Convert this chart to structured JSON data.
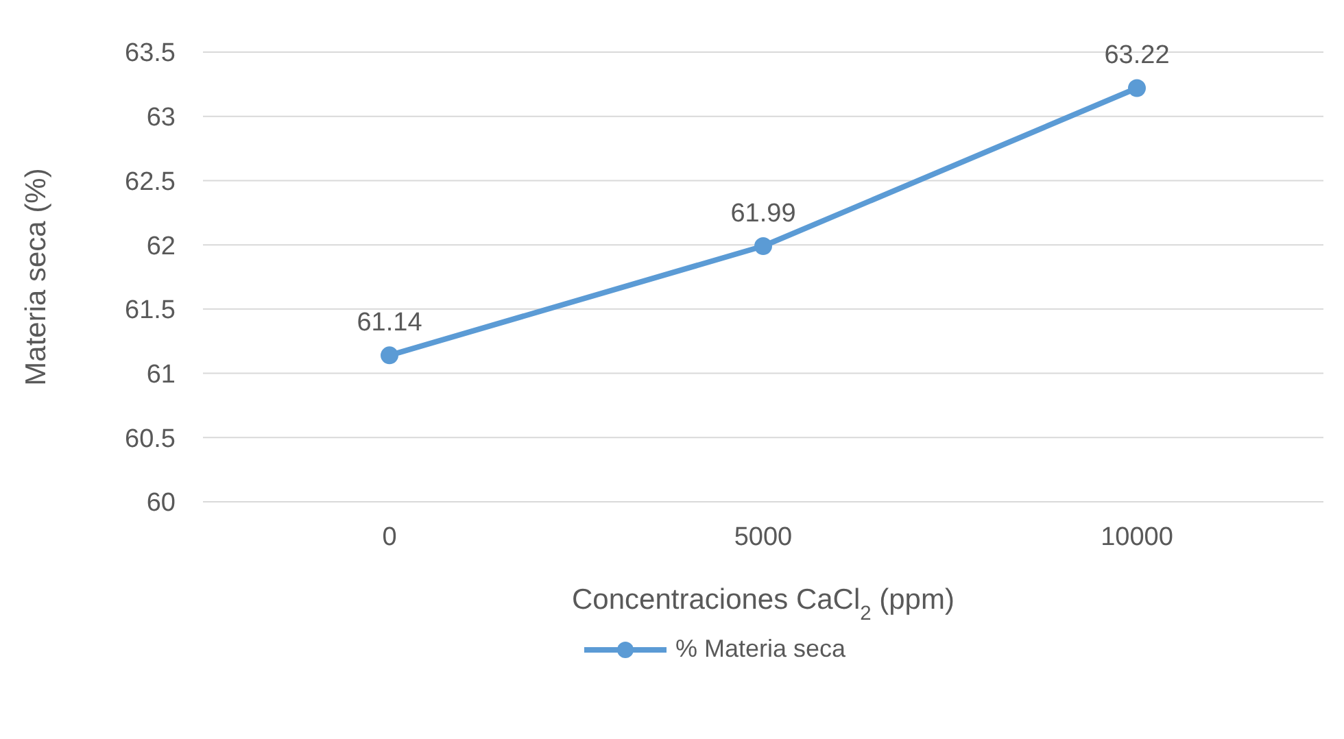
{
  "chart_data": {
    "type": "line",
    "xlabel": "Concentraciones CaCl$_{2}$ (ppm)",
    "ylabel": "Materia seca (%)",
    "categories": [
      "0",
      "5000",
      "10000"
    ],
    "series": [
      {
        "name": "% Materia seca",
        "color": "#5b9bd5",
        "values": [
          61.14,
          61.99,
          63.22
        ]
      }
    ],
    "ylim": [
      60,
      63.5
    ],
    "yticks": [
      60,
      60.5,
      61,
      61.5,
      62,
      62.5,
      63,
      63.5
    ],
    "grid": "y",
    "legend": "bottom",
    "marker": "circle",
    "data_labels": true
  }
}
